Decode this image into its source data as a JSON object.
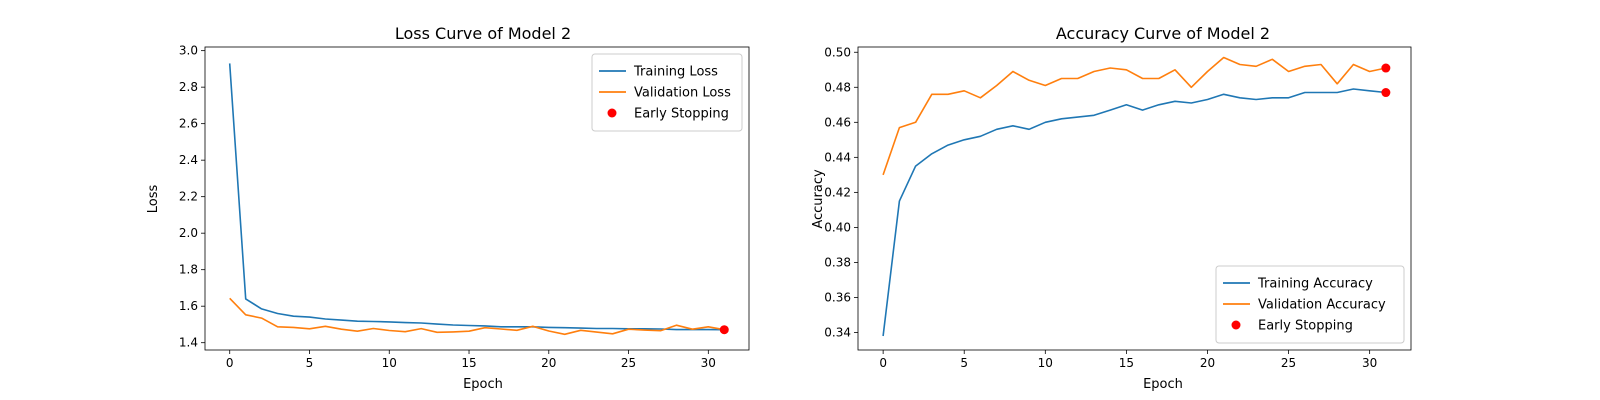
{
  "colors": {
    "training": "#1f77b4",
    "validation": "#ff7f0e",
    "early_stopping": "#ff0000"
  },
  "chart_data": [
    {
      "type": "line",
      "title": "Loss Curve of Model 2",
      "xlabel": "Epoch",
      "ylabel": "Loss",
      "xlim": [
        -1.55,
        32.55
      ],
      "ylim": [
        1.36,
        3.02
      ],
      "xticks": [
        0,
        5,
        10,
        15,
        20,
        25,
        30
      ],
      "yticks": [
        1.4,
        1.6,
        1.8,
        2.0,
        2.2,
        2.4,
        2.6,
        2.8,
        3.0
      ],
      "ytick_decimals": 1,
      "grid": false,
      "legend_position": "top-right",
      "series": [
        {
          "name": "Training Loss",
          "color_key": "training",
          "x": [
            0,
            1,
            2,
            3,
            4,
            5,
            6,
            7,
            8,
            9,
            10,
            11,
            12,
            13,
            14,
            15,
            16,
            17,
            18,
            19,
            20,
            21,
            22,
            23,
            24,
            25,
            26,
            27,
            28,
            29,
            30,
            31
          ],
          "values": [
            2.93,
            1.64,
            1.585,
            1.56,
            1.545,
            1.54,
            1.53,
            1.524,
            1.518,
            1.516,
            1.514,
            1.51,
            1.508,
            1.502,
            1.497,
            1.494,
            1.492,
            1.487,
            1.487,
            1.487,
            1.484,
            1.482,
            1.48,
            1.478,
            1.478,
            1.476,
            1.476,
            1.475,
            1.472,
            1.472,
            1.472,
            1.471
          ]
        },
        {
          "name": "Validation Loss",
          "color_key": "validation",
          "x": [
            0,
            1,
            2,
            3,
            4,
            5,
            6,
            7,
            8,
            9,
            10,
            11,
            12,
            13,
            14,
            15,
            16,
            17,
            18,
            19,
            20,
            21,
            22,
            23,
            24,
            25,
            26,
            27,
            28,
            29,
            30,
            31
          ],
          "values": [
            1.643,
            1.553,
            1.535,
            1.487,
            1.484,
            1.476,
            1.49,
            1.474,
            1.463,
            1.478,
            1.467,
            1.46,
            1.477,
            1.457,
            1.459,
            1.463,
            1.482,
            1.475,
            1.468,
            1.49,
            1.464,
            1.446,
            1.468,
            1.458,
            1.449,
            1.474,
            1.469,
            1.466,
            1.496,
            1.474,
            1.487,
            1.471
          ]
        }
      ],
      "early_stopping": {
        "name": "Early Stopping",
        "color_key": "early_stopping",
        "x": [
          31
        ],
        "values": [
          1.471
        ]
      }
    },
    {
      "type": "line",
      "title": "Accuracy Curve of Model 2",
      "xlabel": "Epoch",
      "ylabel": "Accuracy",
      "xlim": [
        -1.55,
        32.55
      ],
      "ylim": [
        0.33,
        0.503
      ],
      "xticks": [
        0,
        5,
        10,
        15,
        20,
        25,
        30
      ],
      "yticks": [
        0.34,
        0.36,
        0.38,
        0.4,
        0.42,
        0.44,
        0.46,
        0.48,
        0.5
      ],
      "ytick_decimals": 2,
      "grid": false,
      "legend_position": "bottom-right",
      "series": [
        {
          "name": "Training Accuracy",
          "color_key": "training",
          "x": [
            0,
            1,
            2,
            3,
            4,
            5,
            6,
            7,
            8,
            9,
            10,
            11,
            12,
            13,
            14,
            15,
            16,
            17,
            18,
            19,
            20,
            21,
            22,
            23,
            24,
            25,
            26,
            27,
            28,
            29,
            30,
            31
          ],
          "values": [
            0.338,
            0.415,
            0.435,
            0.442,
            0.447,
            0.45,
            0.452,
            0.456,
            0.458,
            0.456,
            0.46,
            0.462,
            0.463,
            0.464,
            0.467,
            0.47,
            0.467,
            0.47,
            0.472,
            0.471,
            0.473,
            0.476,
            0.474,
            0.473,
            0.474,
            0.474,
            0.477,
            0.477,
            0.477,
            0.479,
            0.478,
            0.477
          ]
        },
        {
          "name": "Validation Accuracy",
          "color_key": "validation",
          "x": [
            0,
            1,
            2,
            3,
            4,
            5,
            6,
            7,
            8,
            9,
            10,
            11,
            12,
            13,
            14,
            15,
            16,
            17,
            18,
            19,
            20,
            21,
            22,
            23,
            24,
            25,
            26,
            27,
            28,
            29,
            30,
            31
          ],
          "values": [
            0.43,
            0.457,
            0.46,
            0.476,
            0.476,
            0.478,
            0.474,
            0.481,
            0.489,
            0.484,
            0.481,
            0.485,
            0.485,
            0.489,
            0.491,
            0.49,
            0.485,
            0.485,
            0.49,
            0.48,
            0.489,
            0.497,
            0.493,
            0.492,
            0.496,
            0.489,
            0.492,
            0.493,
            0.482,
            0.493,
            0.489,
            0.491
          ]
        }
      ],
      "early_stopping": {
        "name": "Early Stopping",
        "color_key": "early_stopping",
        "x": [
          31,
          31
        ],
        "values": [
          0.491,
          0.477
        ]
      }
    }
  ]
}
